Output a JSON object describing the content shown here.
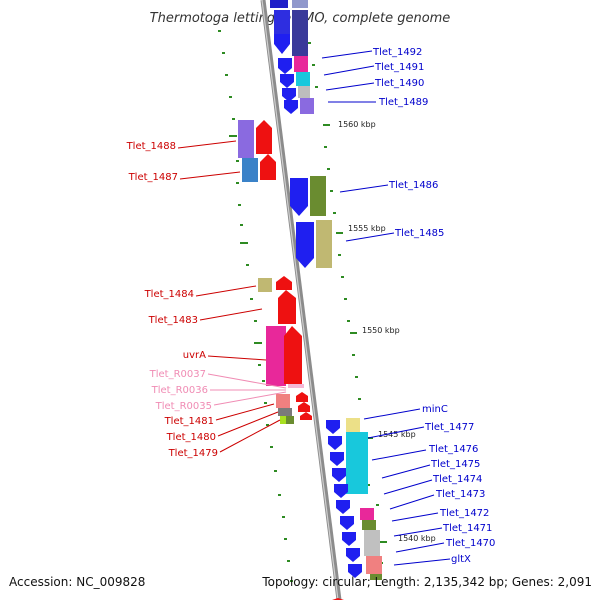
{
  "title": "Thermotoga lettingae TMO, complete genome",
  "footer": {
    "accession": "Accession: NC_009828",
    "summary": "Topology: circular; Length: 2,135,342 bp; Genes: 2,091"
  },
  "colors": {
    "forward_label": "#0000cc",
    "reverse_label": "#cc0000",
    "rna_label": "#f08cb4",
    "backbone": "#8c8c8c",
    "ticks": "#2e8b22"
  },
  "ruler": [
    "1560 kbp",
    "1555 kbp",
    "1550 kbp",
    "1545 kbp",
    "1540 kbp"
  ],
  "genes_forward": [
    "Tlet_1492",
    "Tlet_1491",
    "Tlet_1490",
    "Tlet_1489",
    "Tlet_1486",
    "Tlet_1485",
    "minC",
    "Tlet_1477",
    "Tlet_1476",
    "Tlet_1475",
    "Tlet_1474",
    "Tlet_1473",
    "Tlet_1472",
    "Tlet_1471",
    "Tlet_1470",
    "gltX"
  ],
  "genes_reverse": [
    "Tlet_1488",
    "Tlet_1487",
    "Tlet_1484",
    "Tlet_1483",
    "uvrA",
    "Tlet_1481",
    "Tlet_1480",
    "Tlet_1479"
  ],
  "rnas": [
    "Tlet_R0037",
    "Tlet_R0036",
    "Tlet_R0035"
  ]
}
